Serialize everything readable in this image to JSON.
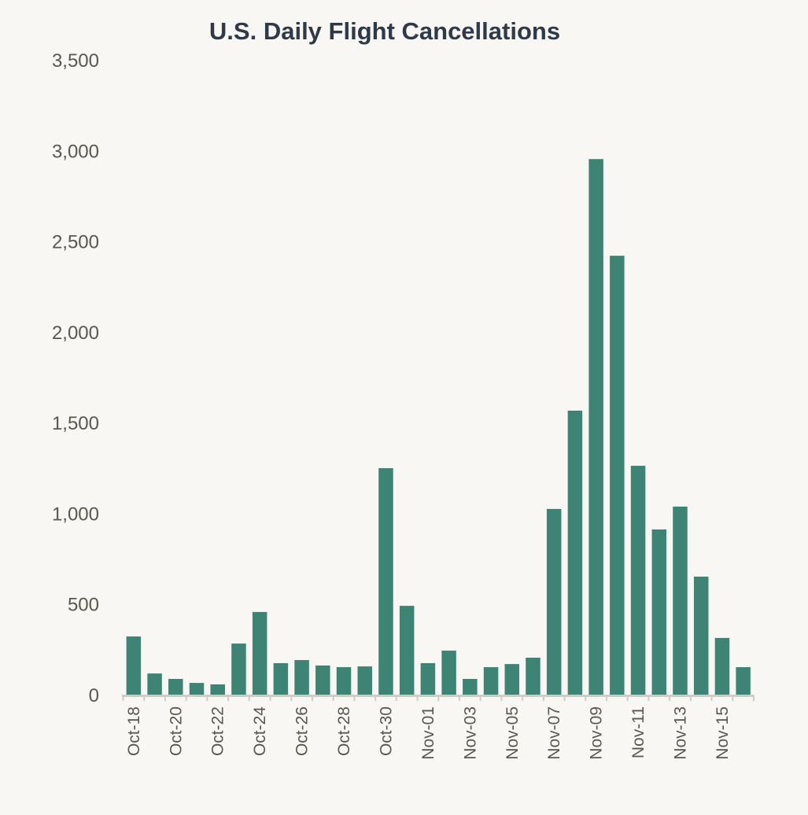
{
  "chart_data": {
    "type": "bar",
    "title": "U.S. Daily Flight Cancellations",
    "xlabel": "",
    "ylabel": "",
    "ylim": [
      0,
      3500
    ],
    "yticks": [
      "0",
      "500",
      "1,000",
      "1,500",
      "2,000",
      "2,500",
      "3,000",
      "3,500"
    ],
    "ytick_values": [
      0,
      500,
      1000,
      1500,
      2000,
      2500,
      3000,
      3500
    ],
    "grid": false,
    "bar_color": "#3d8475",
    "categories": [
      "Oct-18",
      "Oct-19",
      "Oct-20",
      "Oct-21",
      "Oct-22",
      "Oct-23",
      "Oct-24",
      "Oct-25",
      "Oct-26",
      "Oct-27",
      "Oct-28",
      "Oct-29",
      "Oct-30",
      "Oct-31",
      "Nov-01",
      "Nov-02",
      "Nov-03",
      "Nov-04",
      "Nov-05",
      "Nov-06",
      "Nov-07",
      "Nov-08",
      "Nov-09",
      "Nov-10",
      "Nov-11",
      "Nov-12",
      "Nov-13",
      "Nov-14",
      "Nov-15",
      "Nov-16"
    ],
    "tick_labels": [
      "Oct-18",
      "Oct-20",
      "Oct-22",
      "Oct-24",
      "Oct-26",
      "Oct-28",
      "Oct-30",
      "Nov-01",
      "Nov-03",
      "Nov-05",
      "Nov-07",
      "Nov-09",
      "Nov-11",
      "Nov-13",
      "Nov-15"
    ],
    "values": [
      325,
      121,
      91,
      69,
      61,
      286,
      460,
      178,
      195,
      165,
      156,
      160,
      1253,
      494,
      178,
      247,
      91,
      156,
      173,
      208,
      1028,
      1570,
      2957,
      2424,
      1266,
      915,
      1041,
      655,
      317,
      156
    ]
  }
}
